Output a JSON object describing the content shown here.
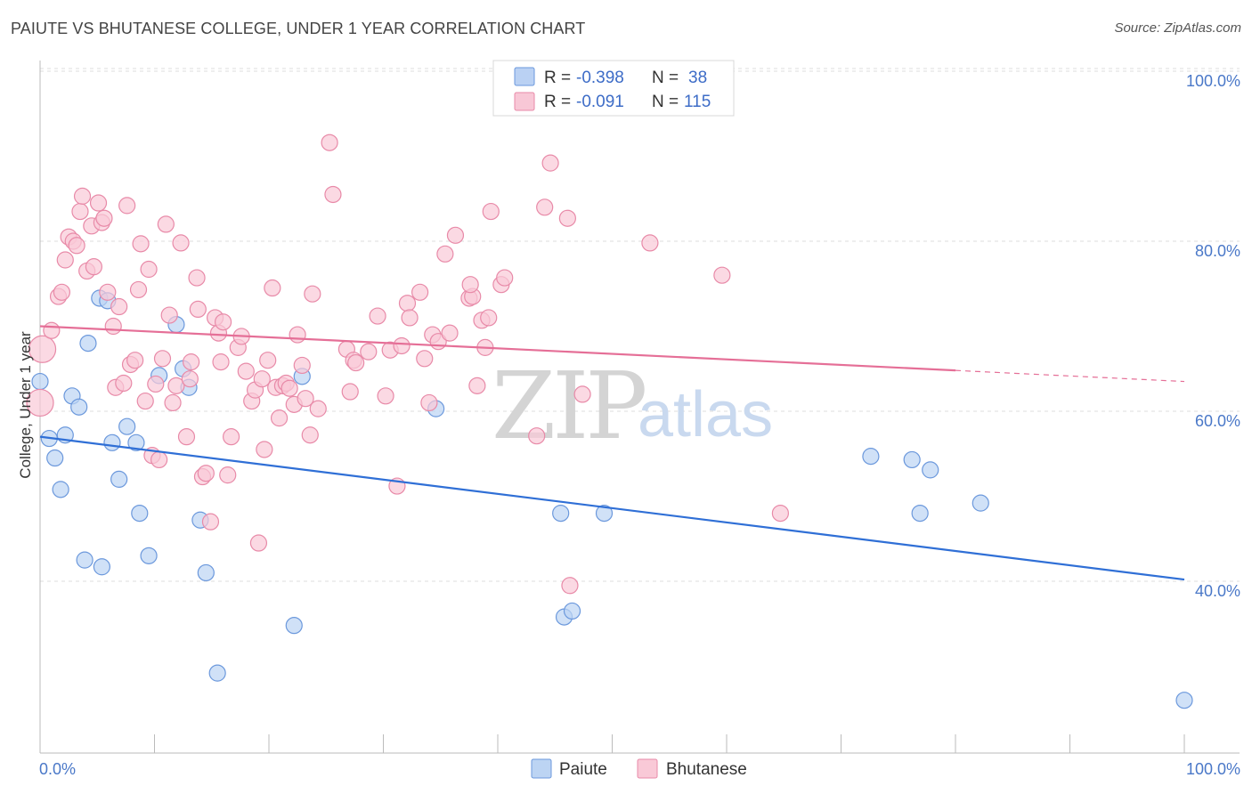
{
  "title": "PAIUTE VS BHUTANESE COLLEGE, UNDER 1 YEAR CORRELATION CHART",
  "source": "Source: ZipAtlas.com",
  "watermark": {
    "zip": "ZIP",
    "atlas": "atlas"
  },
  "legend": {
    "rows": [
      {
        "r_label": "R =",
        "r_value": "-0.398",
        "n_label": "N =",
        "n_value": "38",
        "color": "#a9c6f0",
        "stroke": "#6b98dc"
      },
      {
        "r_label": "R =",
        "r_value": "-0.091",
        "n_label": "N =",
        "n_value": "115",
        "color": "#f6b9cc",
        "stroke": "#e88aa8"
      }
    ]
  },
  "bottom_legend": [
    {
      "label": "Paiute",
      "color": "#bcd4f3",
      "stroke": "#6b98dc"
    },
    {
      "label": "Bhutanese",
      "color": "#f9c9d7",
      "stroke": "#e88aa8"
    }
  ],
  "chart_data": {
    "type": "scatter",
    "title": "PAIUTE VS BHUTANESE COLLEGE, UNDER 1 YEAR CORRELATION CHART",
    "xlabel": "",
    "ylabel": "College, Under 1 year",
    "xlim": [
      0,
      100
    ],
    "ylim": [
      20,
      104
    ],
    "x_tick_labels": [
      "0.0%",
      "100.0%"
    ],
    "y_ticks": [
      40,
      60,
      80,
      100
    ],
    "y_tick_labels": [
      "40.0%",
      "60.0%",
      "80.0%",
      "100.0%"
    ],
    "grid": true,
    "legend_position": "top-center",
    "series": [
      {
        "name": "Paiute",
        "color": "#6b98dc",
        "fill": "#bcd4f3",
        "trend": {
          "x0": 0,
          "y0": 57.0,
          "x1": 100,
          "y1": 40.2,
          "color": "#2f6fd6",
          "solid_until": 100
        },
        "points": [
          [
            0,
            63.5
          ],
          [
            0.8,
            56.8
          ],
          [
            1.3,
            54.5
          ],
          [
            1.8,
            50.8
          ],
          [
            2.2,
            57.2
          ],
          [
            2.8,
            61.8
          ],
          [
            3.4,
            60.5
          ],
          [
            3.9,
            42.5
          ],
          [
            4.2,
            68
          ],
          [
            5.2,
            73.3
          ],
          [
            5.4,
            41.7
          ],
          [
            5.9,
            73
          ],
          [
            6.3,
            56.3
          ],
          [
            6.9,
            52
          ],
          [
            7.6,
            58.2
          ],
          [
            8.4,
            56.3
          ],
          [
            8.7,
            48
          ],
          [
            9.5,
            43
          ],
          [
            10.4,
            64.2
          ],
          [
            11.9,
            70.2
          ],
          [
            12.5,
            65
          ],
          [
            13,
            62.8
          ],
          [
            14,
            47.2
          ],
          [
            14.5,
            41
          ],
          [
            15.5,
            29.2
          ],
          [
            22.2,
            34.8
          ],
          [
            22.9,
            64.1
          ],
          [
            34.6,
            60.3
          ],
          [
            45.5,
            48
          ],
          [
            45.8,
            35.8
          ],
          [
            46.5,
            36.5
          ],
          [
            49.3,
            48
          ],
          [
            72.6,
            54.7
          ],
          [
            76.2,
            54.3
          ],
          [
            77.8,
            53.1
          ],
          [
            76.9,
            48
          ],
          [
            82.2,
            49.2
          ],
          [
            100,
            26
          ]
        ]
      },
      {
        "name": "Bhutanese",
        "color": "#e88aa8",
        "fill": "#f9c9d7",
        "trend": {
          "x0": 0,
          "y0": 70.0,
          "x1": 100,
          "y1": 63.5,
          "color": "#e56f97",
          "solid_until": 80
        },
        "points": [
          [
            0.2,
            67.3
          ],
          [
            0,
            61
          ],
          [
            1,
            69.5
          ],
          [
            1.6,
            73.5
          ],
          [
            1.9,
            74
          ],
          [
            2.2,
            77.8
          ],
          [
            2.5,
            80.5
          ],
          [
            2.9,
            80
          ],
          [
            3.2,
            79.5
          ],
          [
            3.5,
            83.5
          ],
          [
            3.7,
            85.3
          ],
          [
            4.1,
            76.5
          ],
          [
            4.5,
            81.8
          ],
          [
            4.7,
            77
          ],
          [
            5.1,
            84.5
          ],
          [
            5.4,
            82.2
          ],
          [
            5.6,
            82.7
          ],
          [
            5.9,
            74
          ],
          [
            6.4,
            70
          ],
          [
            6.6,
            62.8
          ],
          [
            6.9,
            72.3
          ],
          [
            7.3,
            63.3
          ],
          [
            7.6,
            84.2
          ],
          [
            7.9,
            65.5
          ],
          [
            8.3,
            66
          ],
          [
            8.6,
            74.3
          ],
          [
            8.8,
            79.7
          ],
          [
            9.2,
            61.2
          ],
          [
            9.5,
            76.7
          ],
          [
            9.8,
            54.8
          ],
          [
            10.1,
            63.2
          ],
          [
            10.4,
            54.3
          ],
          [
            10.7,
            66.2
          ],
          [
            11,
            82
          ],
          [
            11.3,
            71.3
          ],
          [
            11.6,
            61
          ],
          [
            11.9,
            63
          ],
          [
            12.3,
            79.8
          ],
          [
            12.8,
            57
          ],
          [
            13.1,
            63.8
          ],
          [
            13.2,
            65.8
          ],
          [
            13.7,
            75.7
          ],
          [
            13.8,
            72
          ],
          [
            14.2,
            52.3
          ],
          [
            14.5,
            52.7
          ],
          [
            14.9,
            47
          ],
          [
            15.3,
            71
          ],
          [
            15.6,
            69.2
          ],
          [
            15.8,
            65.8
          ],
          [
            16,
            70.5
          ],
          [
            16.7,
            57
          ],
          [
            16.4,
            52.5
          ],
          [
            17.3,
            67.5
          ],
          [
            17.6,
            68.8
          ],
          [
            18,
            64.7
          ],
          [
            18.5,
            61.2
          ],
          [
            18.8,
            62.5
          ],
          [
            19.1,
            44.5
          ],
          [
            19.4,
            63.8
          ],
          [
            19.6,
            55.5
          ],
          [
            19.9,
            66
          ],
          [
            20.3,
            74.5
          ],
          [
            20.6,
            62.8
          ],
          [
            20.9,
            59.2
          ],
          [
            21.2,
            63
          ],
          [
            21.5,
            63.3
          ],
          [
            21.8,
            62.7
          ],
          [
            22.2,
            60.8
          ],
          [
            22.5,
            69
          ],
          [
            22.9,
            65.4
          ],
          [
            23.2,
            61.5
          ],
          [
            23.6,
            57.2
          ],
          [
            23.8,
            73.8
          ],
          [
            24.3,
            60.3
          ],
          [
            25.3,
            91.6
          ],
          [
            25.6,
            85.5
          ],
          [
            26.8,
            67.3
          ],
          [
            27.1,
            62.3
          ],
          [
            27.4,
            66
          ],
          [
            27.6,
            65.7
          ],
          [
            28.7,
            67
          ],
          [
            29.5,
            71.2
          ],
          [
            30.2,
            61.8
          ],
          [
            30.6,
            67.2
          ],
          [
            31.2,
            51.2
          ],
          [
            31.6,
            67.7
          ],
          [
            32.1,
            72.7
          ],
          [
            32.3,
            71
          ],
          [
            33.2,
            74
          ],
          [
            33.6,
            66.2
          ],
          [
            34,
            61
          ],
          [
            34.3,
            69
          ],
          [
            34.8,
            68.2
          ],
          [
            35.4,
            78.5
          ],
          [
            35.8,
            69.2
          ],
          [
            36.3,
            80.7
          ],
          [
            37.5,
            73.3
          ],
          [
            37.8,
            73.5
          ],
          [
            37.6,
            74.9
          ],
          [
            38.2,
            63
          ],
          [
            38.6,
            70.7
          ],
          [
            38.9,
            67.5
          ],
          [
            39.2,
            71
          ],
          [
            39.4,
            83.5
          ],
          [
            40.3,
            74.9
          ],
          [
            40.6,
            75.7
          ],
          [
            43.4,
            57.1
          ],
          [
            44.1,
            84
          ],
          [
            44.6,
            89.2
          ],
          [
            46.1,
            82.7
          ],
          [
            46.3,
            39.5
          ],
          [
            47.4,
            62
          ],
          [
            53.3,
            79.8
          ],
          [
            59.6,
            76
          ],
          [
            64.7,
            48
          ]
        ]
      }
    ]
  }
}
